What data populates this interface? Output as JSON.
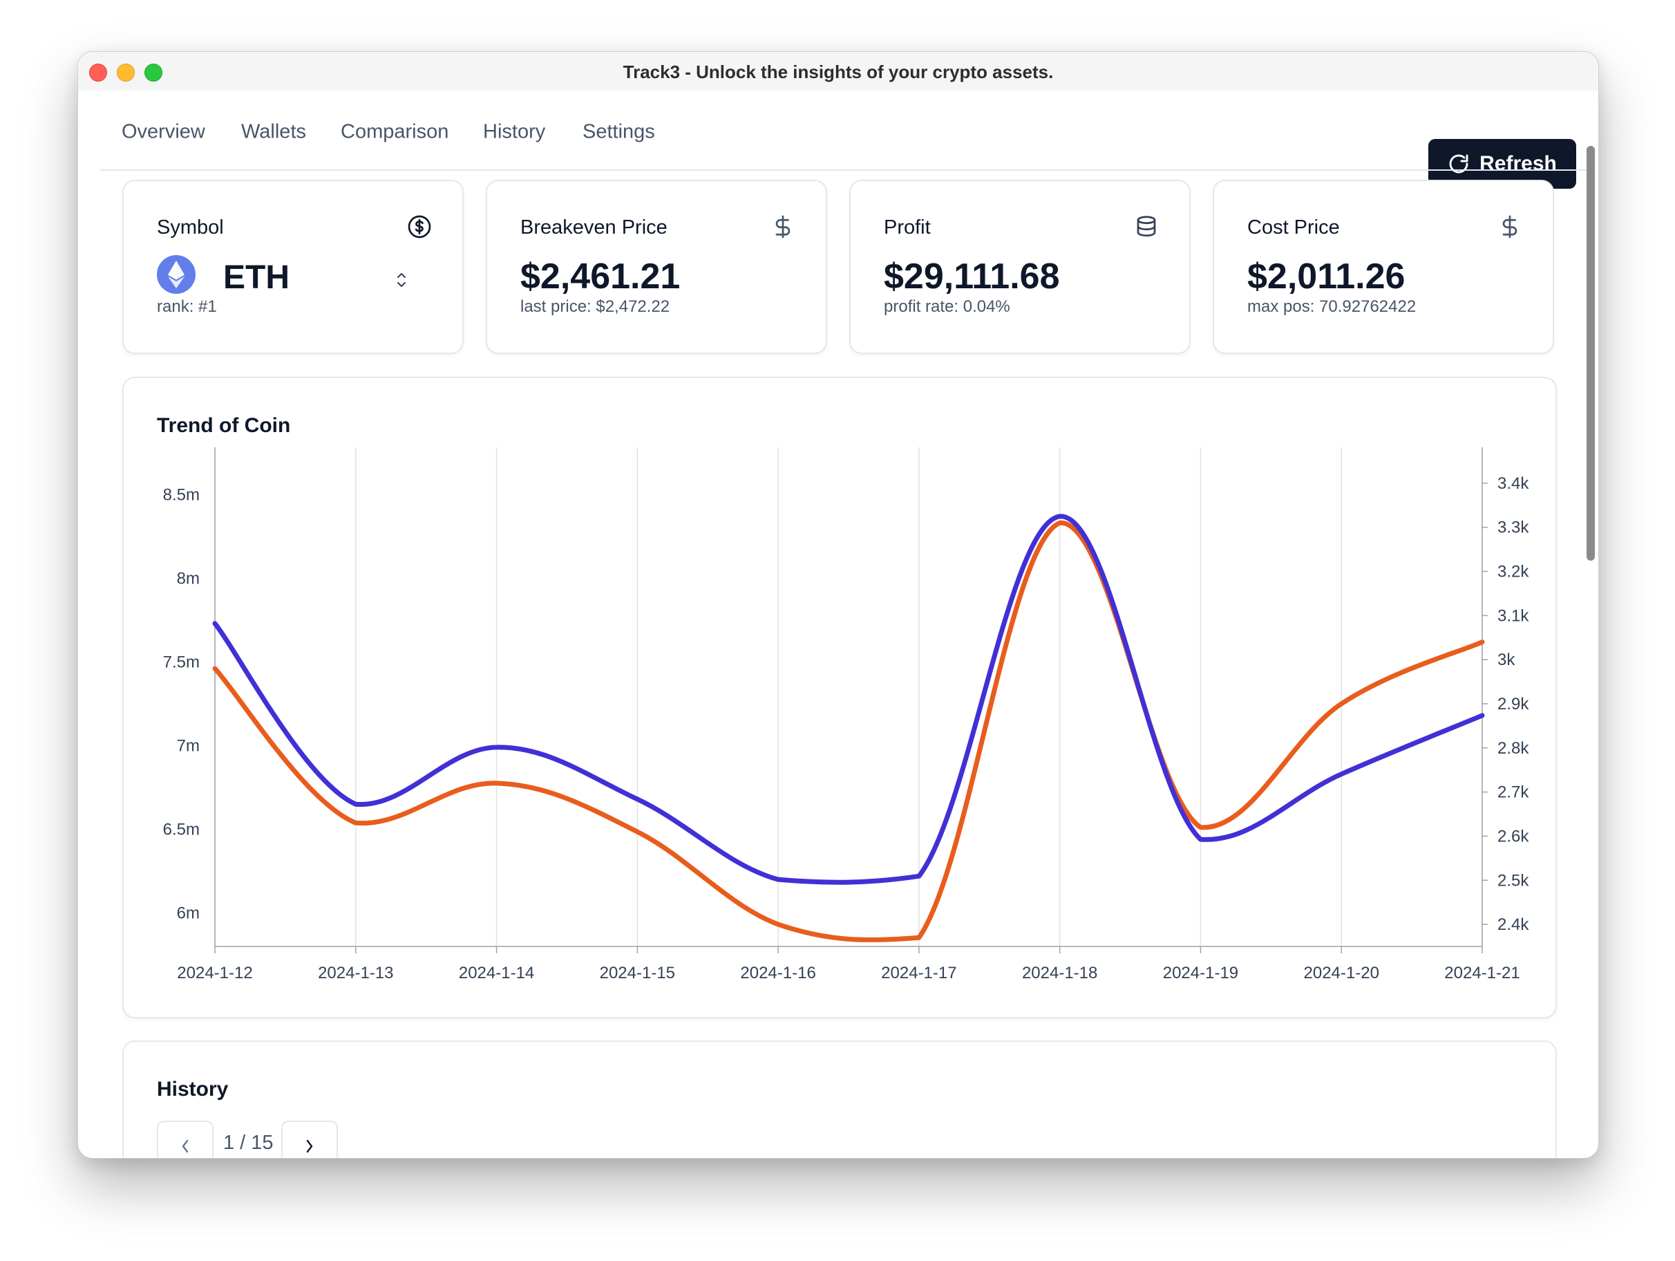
{
  "window": {
    "title": "Track3 - Unlock the insights of your crypto assets."
  },
  "nav": {
    "tabs": [
      "Overview",
      "Wallets",
      "Comparison",
      "History",
      "Settings"
    ],
    "refresh_label": "Refresh"
  },
  "cards": [
    {
      "title": "Symbol",
      "value": "ETH",
      "sub": "rank: #1",
      "icon": "dollar-circle-icon"
    },
    {
      "title": "Breakeven Price",
      "value": "$2,461.21",
      "sub": "last price: $2,472.22",
      "icon": "dollar-icon"
    },
    {
      "title": "Profit",
      "value": "$29,111.68",
      "sub": "profit rate: 0.04%",
      "icon": "coins-stack-icon"
    },
    {
      "title": "Cost Price",
      "value": "$2,011.26",
      "sub": "max pos: 70.92762422",
      "icon": "dollar-icon"
    }
  ],
  "chart": {
    "title": "Trend of Coin"
  },
  "history": {
    "title": "History",
    "page_text": "1 / 15"
  },
  "colors": {
    "orange_series": "#e85d1c",
    "blue_series": "#4130d6",
    "button_dark": "#0f172a"
  },
  "chart_data": {
    "type": "line",
    "title": "Trend of Coin",
    "x": [
      "2024-1-12",
      "2024-1-13",
      "2024-1-14",
      "2024-1-15",
      "2024-1-16",
      "2024-1-17",
      "2024-1-18",
      "2024-1-19",
      "2024-1-20",
      "2024-1-21"
    ],
    "y_left_ticks": [
      "6m",
      "6.5m",
      "7m",
      "7.5m",
      "8m",
      "8.5m"
    ],
    "y_right_ticks": [
      "2.4k",
      "2.5k",
      "2.6k",
      "2.7k",
      "2.8k",
      "2.9k",
      "3k",
      "3.1k",
      "3.2k",
      "3.3k",
      "3.4k"
    ],
    "y_left_range": [
      5.8,
      8.7
    ],
    "y_right_range": [
      2.35,
      3.45
    ],
    "series": [
      {
        "axis": "left",
        "color": "#4130d6",
        "values": [
          7.73,
          6.65,
          6.99,
          6.68,
          6.2,
          6.22,
          8.37,
          6.44,
          6.83,
          7.18
        ]
      },
      {
        "axis": "right",
        "color": "#e85d1c",
        "values": [
          2.98,
          2.63,
          2.72,
          2.61,
          2.4,
          2.37,
          3.31,
          2.62,
          2.9,
          3.04
        ]
      }
    ],
    "grid": "vertical"
  }
}
